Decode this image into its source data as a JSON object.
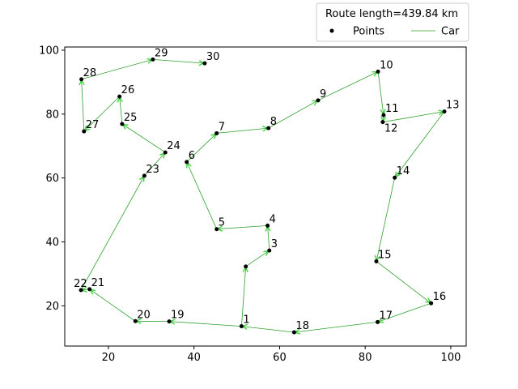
{
  "chart_data": {
    "type": "line",
    "title": "",
    "xlabel": "",
    "ylabel": "",
    "xlim": [
      9.8,
      103.6
    ],
    "ylim": [
      7.4,
      101.0
    ],
    "xticks": [
      20,
      40,
      60,
      80,
      100
    ],
    "yticks": [
      20,
      40,
      60,
      80,
      100
    ],
    "grid": false,
    "legend": {
      "placement": "top-right",
      "title": "Route length=439.84 km",
      "entries": [
        {
          "label": "Points",
          "kind": "marker",
          "color": "#000000"
        },
        {
          "label": "Car",
          "kind": "line",
          "color": "#2ca02c"
        }
      ]
    },
    "points": [
      {
        "id": "1",
        "x": 51.1,
        "y": 13.6
      },
      {
        "id": "3",
        "x": 57.6,
        "y": 37.3
      },
      {
        "id": "4",
        "x": 57.2,
        "y": 45.1
      },
      {
        "id": "5",
        "x": 45.3,
        "y": 44.0
      },
      {
        "id": "6",
        "x": 38.3,
        "y": 65.0
      },
      {
        "id": "7",
        "x": 45.3,
        "y": 74.0
      },
      {
        "id": "8",
        "x": 57.4,
        "y": 75.6
      },
      {
        "id": "9",
        "x": 69.0,
        "y": 84.3
      },
      {
        "id": "10",
        "x": 83.0,
        "y": 93.3
      },
      {
        "id": "11",
        "x": 84.3,
        "y": 79.7
      },
      {
        "id": "12",
        "x": 84.1,
        "y": 77.5
      },
      {
        "id": "13",
        "x": 98.5,
        "y": 80.8
      },
      {
        "id": "14",
        "x": 86.9,
        "y": 60.1
      },
      {
        "id": "15",
        "x": 82.6,
        "y": 33.9
      },
      {
        "id": "16",
        "x": 95.4,
        "y": 20.8
      },
      {
        "id": "17",
        "x": 82.9,
        "y": 14.9
      },
      {
        "id": "18",
        "x": 63.4,
        "y": 11.7
      },
      {
        "id": "19",
        "x": 34.2,
        "y": 15.1
      },
      {
        "id": "20",
        "x": 26.3,
        "y": 15.2
      },
      {
        "id": "21",
        "x": 15.6,
        "y": 25.2
      },
      {
        "id": "22",
        "x": 13.6,
        "y": 24.9
      },
      {
        "id": "23",
        "x": 28.4,
        "y": 60.7
      },
      {
        "id": "24",
        "x": 33.3,
        "y": 68.0
      },
      {
        "id": "25",
        "x": 23.2,
        "y": 76.9
      },
      {
        "id": "26",
        "x": 22.6,
        "y": 85.5
      },
      {
        "id": "27",
        "x": 14.3,
        "y": 74.6
      },
      {
        "id": "28",
        "x": 13.7,
        "y": 90.9
      },
      {
        "id": "29",
        "x": 30.4,
        "y": 97.1
      },
      {
        "id": "30",
        "x": 42.5,
        "y": 95.9
      }
    ],
    "unlabeled_points": [
      {
        "x": 52.1,
        "y": 32.3
      }
    ],
    "route": [
      {
        "x": 51.1,
        "y": 13.6
      },
      {
        "x": 52.1,
        "y": 32.3
      },
      {
        "x": 57.6,
        "y": 37.3
      },
      {
        "x": 57.2,
        "y": 45.1
      },
      {
        "x": 45.3,
        "y": 44.0
      },
      {
        "x": 38.3,
        "y": 65.0
      },
      {
        "x": 45.3,
        "y": 74.0
      },
      {
        "x": 57.4,
        "y": 75.6
      },
      {
        "x": 69.0,
        "y": 84.3
      },
      {
        "x": 83.0,
        "y": 93.3
      },
      {
        "x": 84.3,
        "y": 79.7
      },
      {
        "x": 84.1,
        "y": 77.5
      },
      {
        "x": 98.5,
        "y": 80.8
      },
      {
        "x": 86.9,
        "y": 60.1
      },
      {
        "x": 82.6,
        "y": 33.9
      },
      {
        "x": 95.4,
        "y": 20.8
      },
      {
        "x": 82.9,
        "y": 14.9
      },
      {
        "x": 63.4,
        "y": 11.7
      },
      {
        "x": 51.1,
        "y": 13.6
      },
      {
        "x": 34.2,
        "y": 15.1
      },
      {
        "x": 26.3,
        "y": 15.2
      },
      {
        "x": 15.6,
        "y": 25.2
      },
      {
        "x": 13.6,
        "y": 24.9
      },
      {
        "x": 28.4,
        "y": 60.7
      },
      {
        "x": 33.3,
        "y": 68.0
      },
      {
        "x": 23.2,
        "y": 76.9
      },
      {
        "x": 22.6,
        "y": 85.5
      },
      {
        "x": 14.3,
        "y": 74.6
      },
      {
        "x": 13.7,
        "y": 90.9
      },
      {
        "x": 30.4,
        "y": 97.1
      },
      {
        "x": 42.5,
        "y": 95.9
      }
    ]
  }
}
